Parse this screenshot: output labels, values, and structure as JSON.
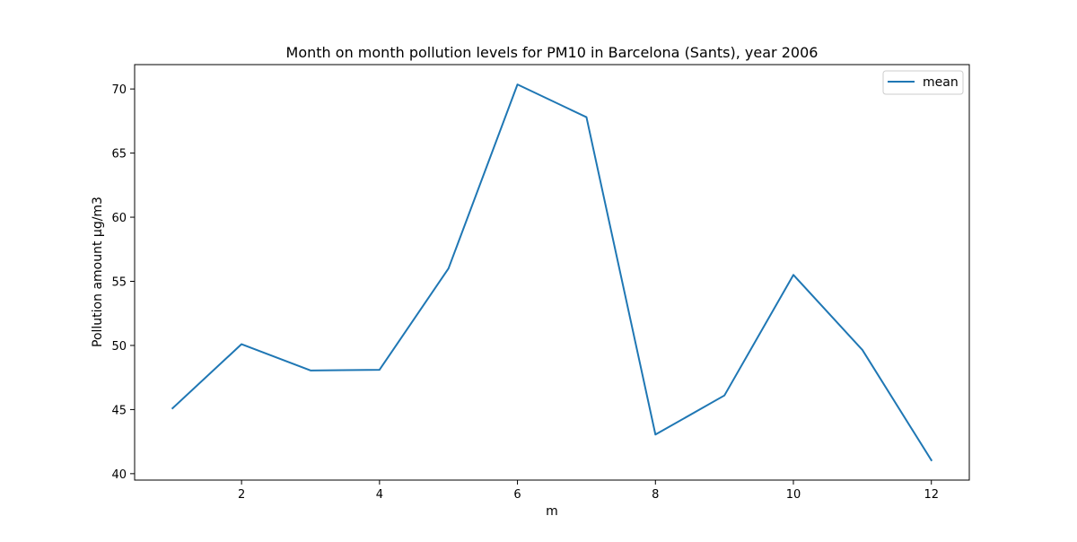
{
  "chart_data": {
    "type": "line",
    "title": "Month on month pollution levels for PM10 in Barcelona (Sants), year 2006",
    "xlabel": "m",
    "ylabel": "Pollution amount µg/m3",
    "x": [
      1,
      2,
      3,
      4,
      5,
      6,
      7,
      8,
      9,
      10,
      11,
      12
    ],
    "series": [
      {
        "name": "mean",
        "color": "#1f77b4",
        "values": [
          45.1,
          50.1,
          48.05,
          48.1,
          56.0,
          70.35,
          67.8,
          43.05,
          46.1,
          55.5,
          49.65,
          41.05
        ]
      }
    ],
    "xlim": [
      0.45,
      12.55
    ],
    "ylim": [
      39.5,
      71.9
    ],
    "xticks": [
      2,
      4,
      6,
      8,
      10,
      12
    ],
    "yticks": [
      40,
      45,
      50,
      55,
      60,
      65,
      70
    ],
    "grid": false,
    "legend_position": "top-right"
  }
}
